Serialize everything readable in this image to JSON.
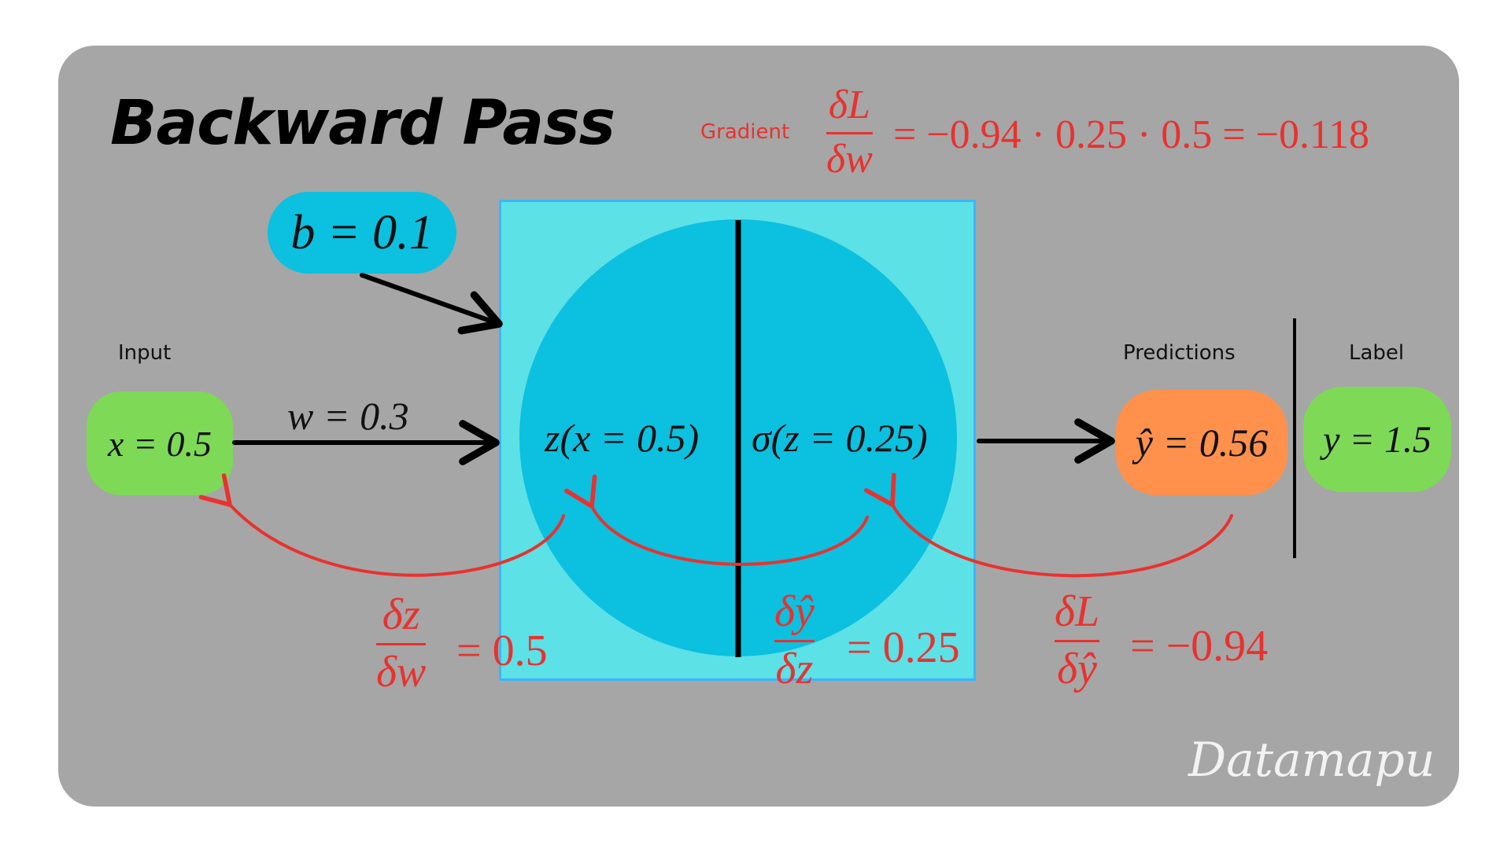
{
  "title": "Backward Pass",
  "gradient": {
    "label": "Gradient",
    "numerator": "δL",
    "denominator": "δw",
    "expression": "= −0.94 · 0.25 · 0.5 = −0.118"
  },
  "bias": {
    "text": "b = 0.1"
  },
  "input": {
    "label": "Input",
    "value": "x = 0.5"
  },
  "weight": {
    "text": "w = 0.3"
  },
  "neuron": {
    "linear": "z(x = 0.5)",
    "activation": "σ(z = 0.25)"
  },
  "prediction": {
    "label": "Predictions",
    "value": "ŷ = 0.56"
  },
  "target": {
    "label": "Label",
    "value": "y = 1.5"
  },
  "derivatives": {
    "dz_dw": {
      "numerator": "δz",
      "denominator": "δw",
      "value": "= 0.5"
    },
    "dyhat_dz": {
      "numerator": "δŷ",
      "denominator": "δz",
      "value": "= 0.25"
    },
    "dL_dyhat": {
      "numerator": "δL",
      "denominator": "δŷ",
      "value": "= −0.94"
    }
  },
  "watermark": "Datamapu",
  "colors": {
    "background_panel": "#a6a6a6",
    "neuron_box": "#5ce1e6",
    "neuron_circle": "#0cc0df",
    "input_pill": "#7ed957",
    "prediction_pill": "#ff914d",
    "gradient_red": "#e8322f"
  }
}
